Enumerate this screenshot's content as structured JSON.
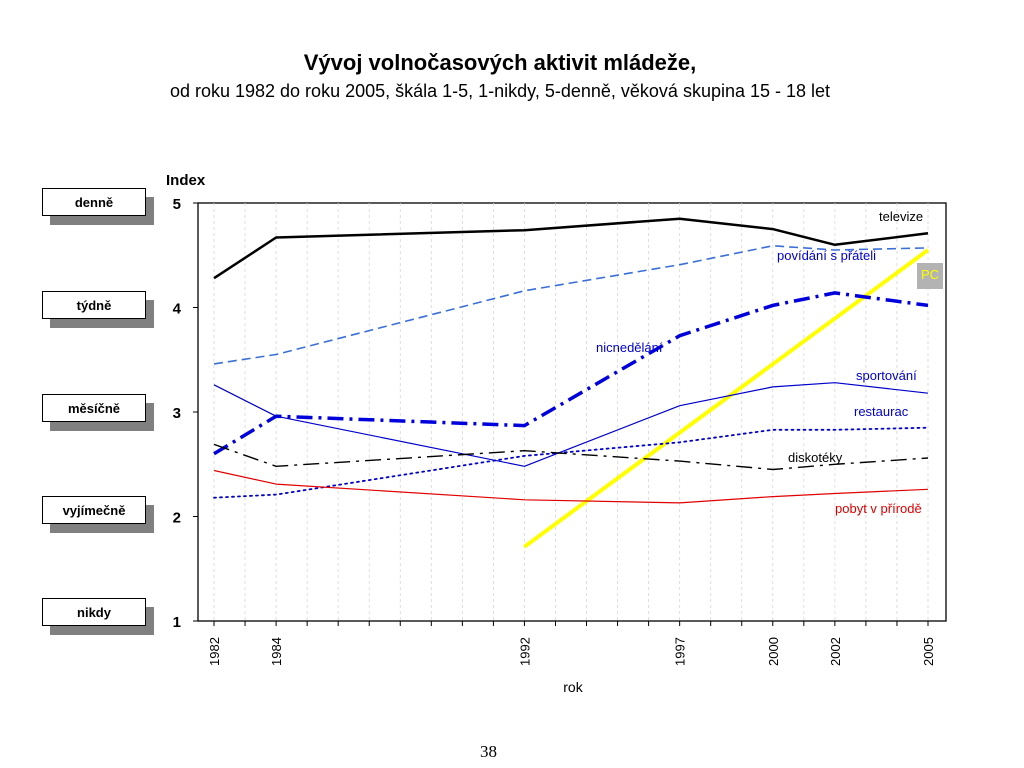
{
  "slide": {
    "title": "Vývoj volnočasových aktivit mládeže,",
    "subtitle": "od roku 1982 do roku 2005, škála 1-5, 1-nikdy,  5-denně, věková skupina 15 - 18 let",
    "page_number": "38"
  },
  "scale_labels": [
    "denně",
    "týdně",
    "měsíčně",
    "vyjímečně",
    "nikdy"
  ],
  "chart_data": {
    "type": "line",
    "ylabel": "Index",
    "xlabel": "rok",
    "ylim": [
      1,
      5
    ],
    "yticks": [
      1,
      2,
      3,
      4,
      5
    ],
    "xlim": [
      1981,
      2006
    ],
    "xticks": [
      1982,
      1984,
      1992,
      1997,
      2000,
      2002,
      2005
    ],
    "grid": "vertical",
    "series": [
      {
        "name": "televize",
        "color": "#000000",
        "style": "solid",
        "width": 2.5,
        "x": [
          1982,
          1984,
          1992,
          1997,
          2000,
          2002,
          2005
        ],
        "y": [
          4.28,
          4.67,
          4.74,
          4.85,
          4.75,
          4.6,
          4.71
        ]
      },
      {
        "name": "povídání s přáteli",
        "color": "#3a6fd8",
        "style": "dash",
        "width": 1.6,
        "x": [
          1982,
          1984,
          1992,
          1997,
          2000,
          2002,
          2005
        ],
        "y": [
          3.46,
          3.55,
          4.16,
          4.41,
          4.59,
          4.55,
          4.57
        ]
      },
      {
        "name": "PC",
        "color": "#ffff00",
        "style": "solid",
        "width": 4,
        "x": [
          1992,
          2005
        ],
        "y": [
          1.71,
          4.55
        ]
      },
      {
        "name": "nicnedělání",
        "color": "#0000dd",
        "style": "dashdot",
        "width": 3.5,
        "x": [
          1982,
          1984,
          1992,
          1997,
          2000,
          2002,
          2005
        ],
        "y": [
          2.6,
          2.96,
          2.87,
          3.73,
          4.02,
          4.14,
          4.02
        ]
      },
      {
        "name": "sportování",
        "color": "#0000cc",
        "style": "solid",
        "width": 1.2,
        "x": [
          1982,
          1984,
          1992,
          1997,
          2000,
          2002,
          2005
        ],
        "y": [
          3.26,
          2.96,
          2.48,
          3.06,
          3.24,
          3.28,
          3.18
        ]
      },
      {
        "name": "restaurac",
        "color": "#0000cc",
        "style": "dot",
        "width": 1.8,
        "x": [
          1982,
          1984,
          1992,
          1997,
          2000,
          2002,
          2005
        ],
        "y": [
          2.18,
          2.21,
          2.58,
          2.71,
          2.83,
          2.83,
          2.85
        ]
      },
      {
        "name": "diskotéky",
        "color": "#000000",
        "style": "dashdot",
        "width": 1.4,
        "x": [
          1982,
          1984,
          1992,
          1997,
          2000,
          2002,
          2005
        ],
        "y": [
          2.69,
          2.48,
          2.63,
          2.53,
          2.45,
          2.5,
          2.56
        ]
      },
      {
        "name": "pobyt v přírodě",
        "color": "#e00000",
        "style": "solid",
        "width": 1.2,
        "x": [
          1982,
          1984,
          1992,
          1997,
          2000,
          2002,
          2005
        ],
        "y": [
          2.44,
          2.31,
          2.16,
          2.13,
          2.19,
          2.22,
          2.26
        ]
      }
    ]
  }
}
